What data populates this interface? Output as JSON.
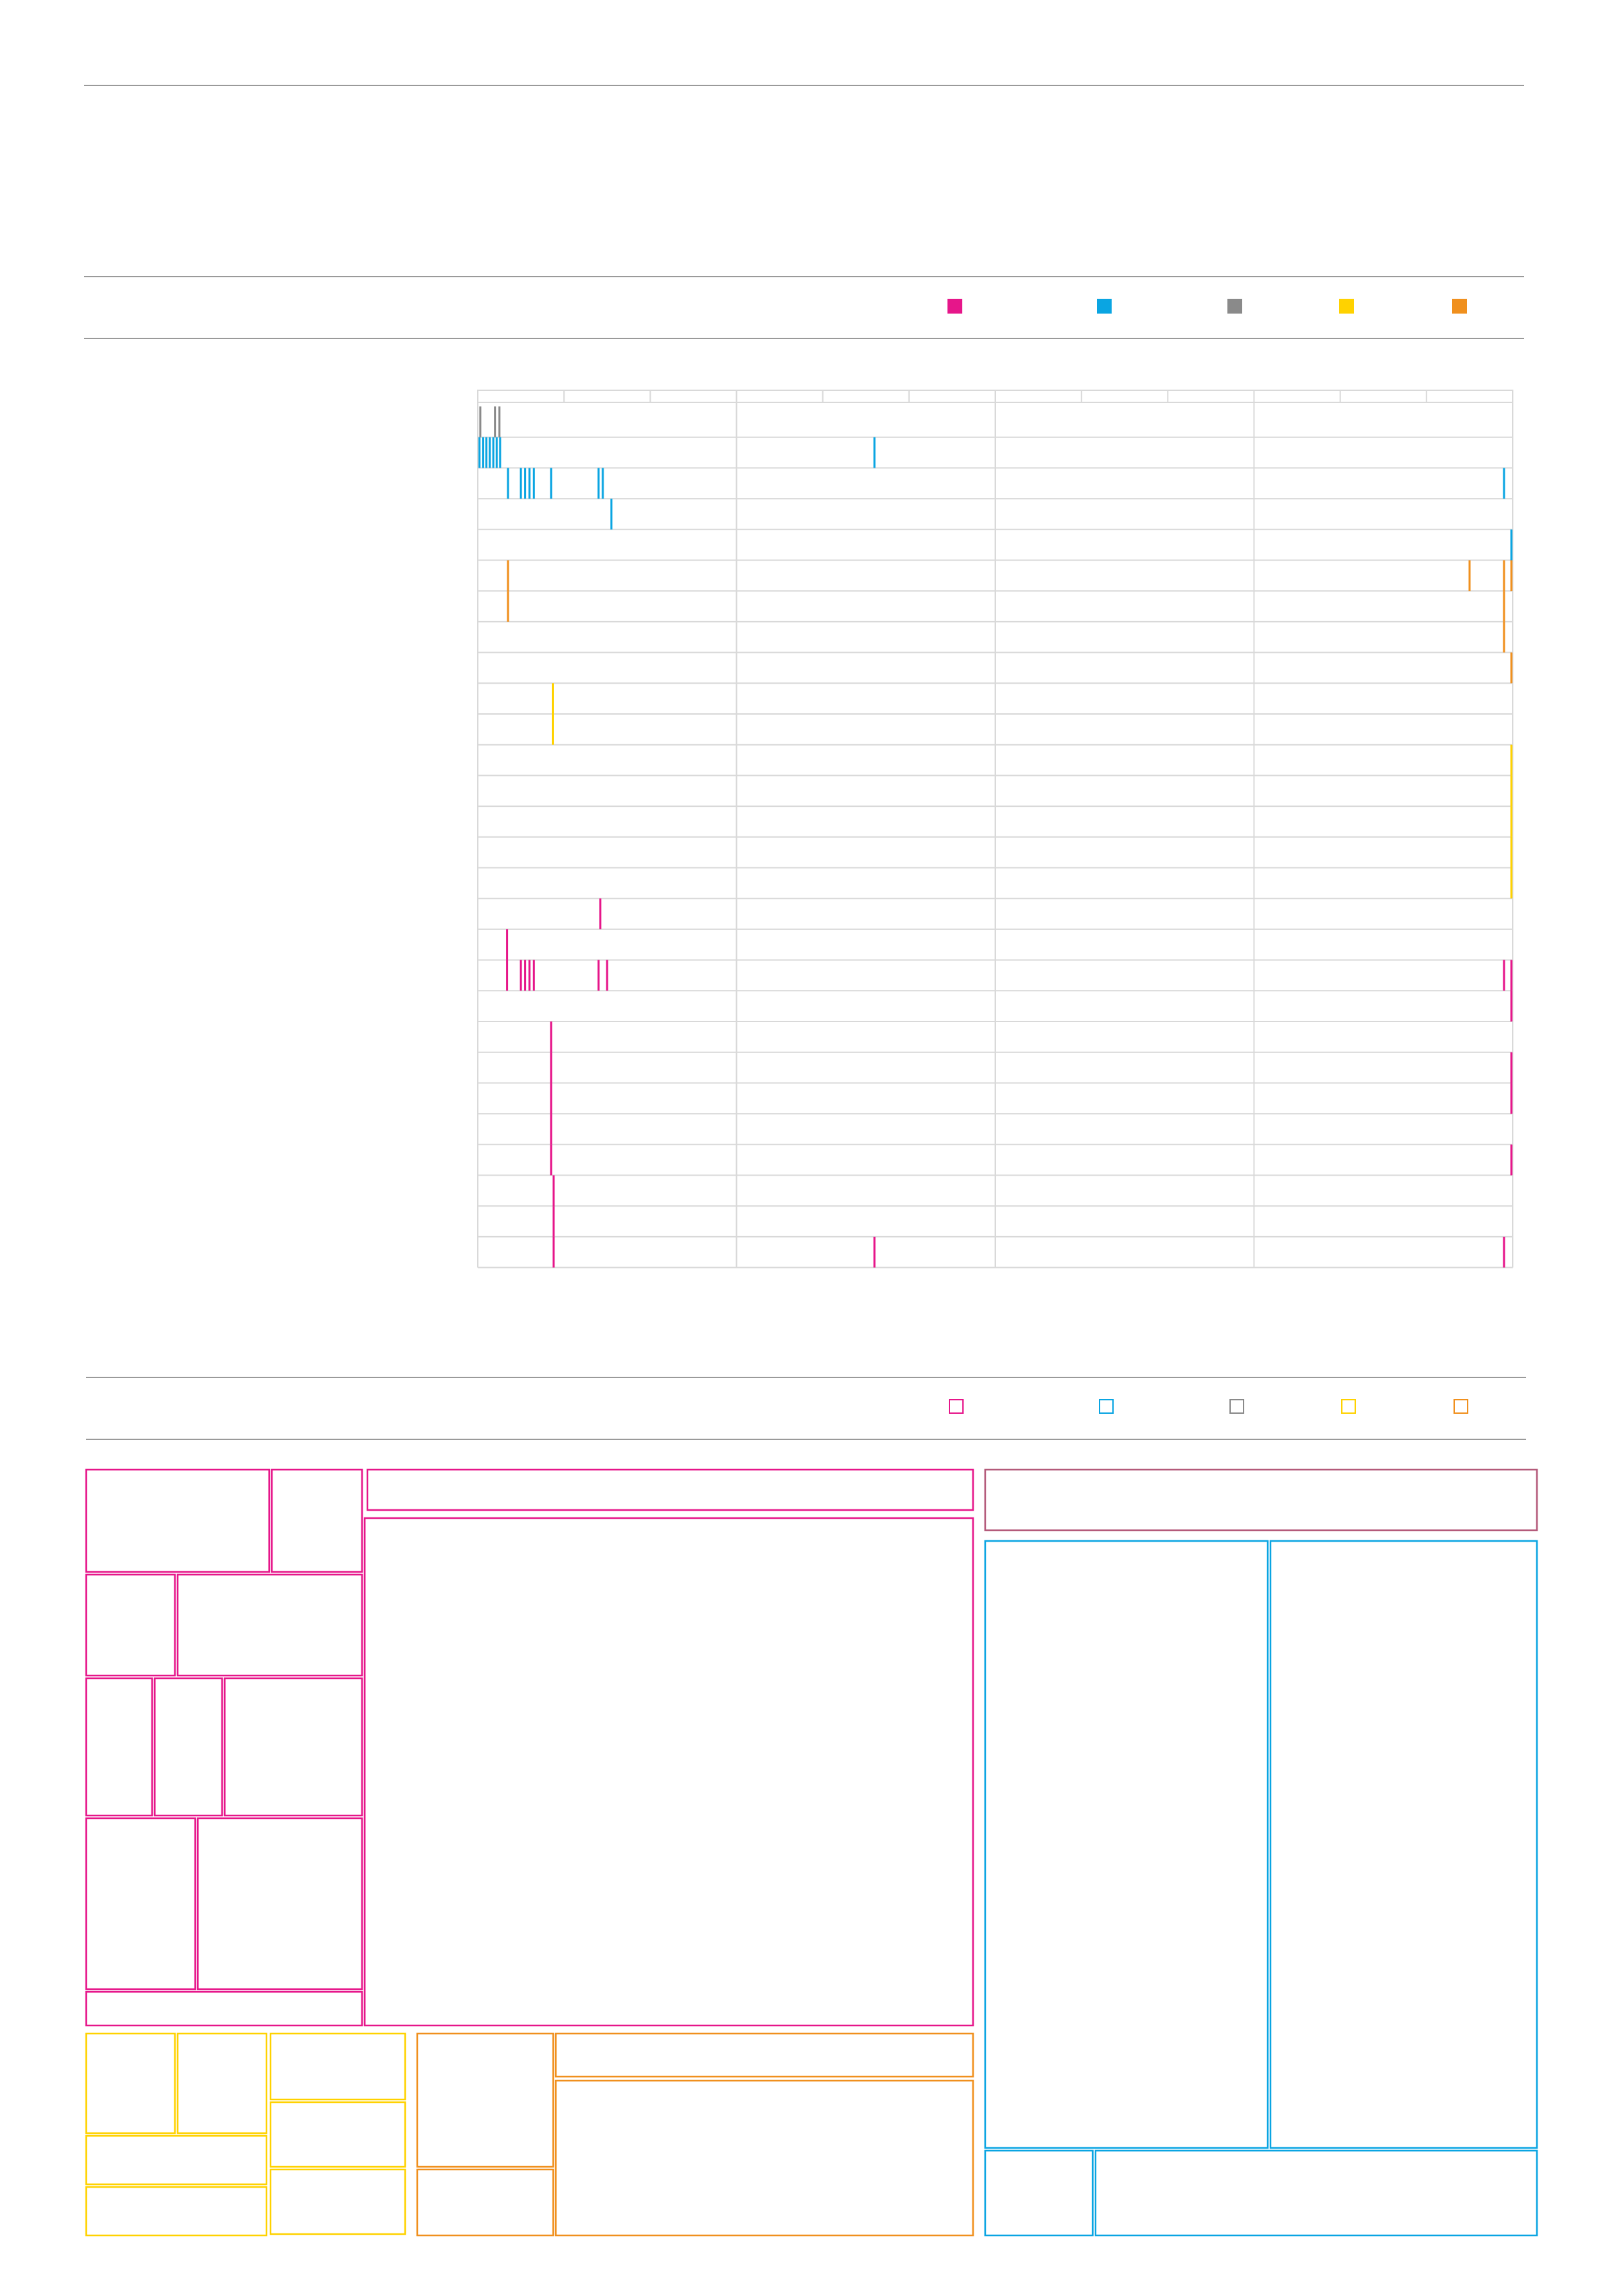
{
  "colors": {
    "magenta": "#e6168a",
    "blue": "#0aa5e2",
    "gray": "#8a8a8a",
    "yellow": "#ffd200",
    "orange": "#f0901e",
    "gridline": "#d9d9d9",
    "rule": "#9a9a9a"
  },
  "legend": {
    "series": [
      "magenta",
      "blue",
      "gray",
      "yellow",
      "orange"
    ]
  },
  "chart_data": [
    {
      "type": "timeline",
      "xlim": [
        0,
        120
      ],
      "major_ticks": [
        0,
        30,
        60,
        90,
        120
      ],
      "minor_ticks": [
        10,
        20,
        40,
        50,
        70,
        80,
        100,
        110
      ],
      "grid": true,
      "rows": [
        {
          "color": "gray",
          "events": [
            0.3,
            2,
            2.5
          ]
        },
        {
          "color": "blue",
          "events": [
            0.2,
            0.6,
            1,
            1.4,
            1.8,
            2.2,
            2.6,
            46
          ]
        },
        {
          "color": "blue",
          "events": [
            3.5,
            5,
            5.5,
            6,
            6.5,
            8.5,
            14,
            14.5,
            119
          ]
        },
        {
          "color": "blue",
          "events": [
            15.5
          ]
        },
        {
          "color": "blue",
          "events": [
            120
          ]
        },
        {
          "color": "orange",
          "events": [
            3.5,
            115,
            119,
            120
          ]
        },
        {
          "color": "orange",
          "events": [
            3.5,
            119
          ]
        },
        {
          "color": "orange",
          "events": [
            119
          ]
        },
        {
          "color": "orange",
          "events": [
            120
          ]
        },
        {
          "color": "yellow",
          "events": [
            8.7
          ]
        },
        {
          "color": "yellow",
          "events": [
            8.7
          ]
        },
        {
          "color": "yellow",
          "events": [
            120
          ]
        },
        {
          "color": "yellow",
          "events": [
            120
          ]
        },
        {
          "color": "yellow",
          "events": [
            120
          ]
        },
        {
          "color": "yellow",
          "events": [
            120
          ]
        },
        {
          "color": "yellow",
          "events": [
            120
          ]
        },
        {
          "color": "magenta",
          "events": [
            14.2
          ]
        },
        {
          "color": "magenta",
          "events": [
            3.4
          ]
        },
        {
          "color": "magenta",
          "events": [
            3.4,
            5,
            5.5,
            6,
            6.5,
            14,
            15,
            119,
            120
          ]
        },
        {
          "color": "magenta",
          "events": [
            120
          ]
        },
        {
          "color": "magenta",
          "events": [
            8.5
          ]
        },
        {
          "color": "magenta",
          "events": [
            8.5,
            120
          ]
        },
        {
          "color": "magenta",
          "events": [
            8.5,
            120
          ]
        },
        {
          "color": "magenta",
          "events": [
            8.5
          ]
        },
        {
          "color": "magenta",
          "events": [
            8.5,
            120
          ]
        },
        {
          "color": "magenta",
          "events": [
            8.8
          ]
        },
        {
          "color": "magenta",
          "events": [
            8.8
          ]
        },
        {
          "color": "magenta",
          "events": [
            8.8,
            46,
            119
          ]
        }
      ]
    },
    {
      "type": "treemap",
      "groups": [
        {
          "color": "magenta",
          "cells": 16
        },
        {
          "color": "blue",
          "cells": 5
        },
        {
          "color": "yellow",
          "cells": 8
        },
        {
          "color": "orange",
          "cells": 4
        }
      ]
    }
  ]
}
